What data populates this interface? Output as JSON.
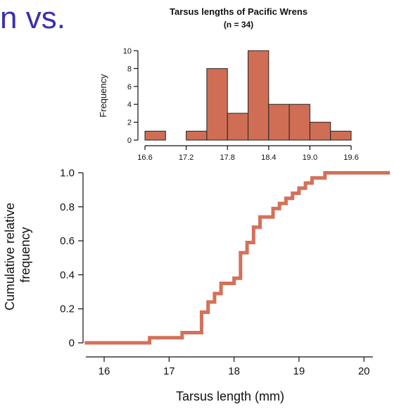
{
  "slide": {
    "title_fragment": "n vs."
  },
  "chart_data": [
    {
      "type": "bar",
      "title": "Tarsus lengths of Pacific Wrens",
      "subtitle": "(n = 34)",
      "xlabel": "",
      "ylabel": "Frequency",
      "bin_edges": [
        16.6,
        16.9,
        17.2,
        17.5,
        17.8,
        18.1,
        18.4,
        18.7,
        19.0,
        19.3,
        19.6
      ],
      "values": [
        1,
        0,
        1,
        8,
        3,
        10,
        4,
        4,
        2,
        1
      ],
      "xticks": [
        "16.6",
        "17.2",
        "17.8",
        "18.4",
        "19.0",
        "19.6"
      ],
      "yticks": [
        "0",
        "2",
        "4",
        "6",
        "8",
        "10"
      ],
      "xlim": [
        16.6,
        19.6
      ],
      "ylim": [
        0,
        10
      ],
      "bar_color": "#cf6e55",
      "edge_color": "#222222"
    },
    {
      "type": "line",
      "subtype": "step",
      "title": "",
      "xlabel": "Tarsus length (mm)",
      "ylabel": "Cumulative relative frequency",
      "x": [
        15.7,
        16.7,
        16.7,
        17.2,
        17.2,
        17.5,
        17.5,
        17.6,
        17.6,
        17.7,
        17.7,
        17.8,
        17.8,
        18.0,
        18.0,
        18.1,
        18.1,
        18.2,
        18.2,
        18.3,
        18.3,
        18.4,
        18.4,
        18.6,
        18.6,
        18.7,
        18.7,
        18.8,
        18.8,
        18.9,
        18.9,
        19.0,
        19.0,
        19.1,
        19.1,
        19.2,
        19.2,
        19.4,
        19.4,
        20.4
      ],
      "y": [
        0.0,
        0.0,
        0.03,
        0.03,
        0.06,
        0.06,
        0.18,
        0.18,
        0.24,
        0.24,
        0.29,
        0.29,
        0.35,
        0.35,
        0.38,
        0.38,
        0.53,
        0.53,
        0.59,
        0.59,
        0.68,
        0.68,
        0.74,
        0.74,
        0.79,
        0.79,
        0.82,
        0.82,
        0.85,
        0.85,
        0.88,
        0.88,
        0.91,
        0.91,
        0.94,
        0.94,
        0.97,
        0.97,
        1.0,
        1.0
      ],
      "xticks": [
        "16",
        "17",
        "18",
        "19",
        "20"
      ],
      "yticks": [
        "0",
        "0.2",
        "0.4",
        "0.6",
        "0.8",
        "1.0"
      ],
      "xlim": [
        15.5,
        20.5
      ],
      "ylim": [
        0,
        1.05
      ],
      "line_color": "#d4715a"
    }
  ]
}
